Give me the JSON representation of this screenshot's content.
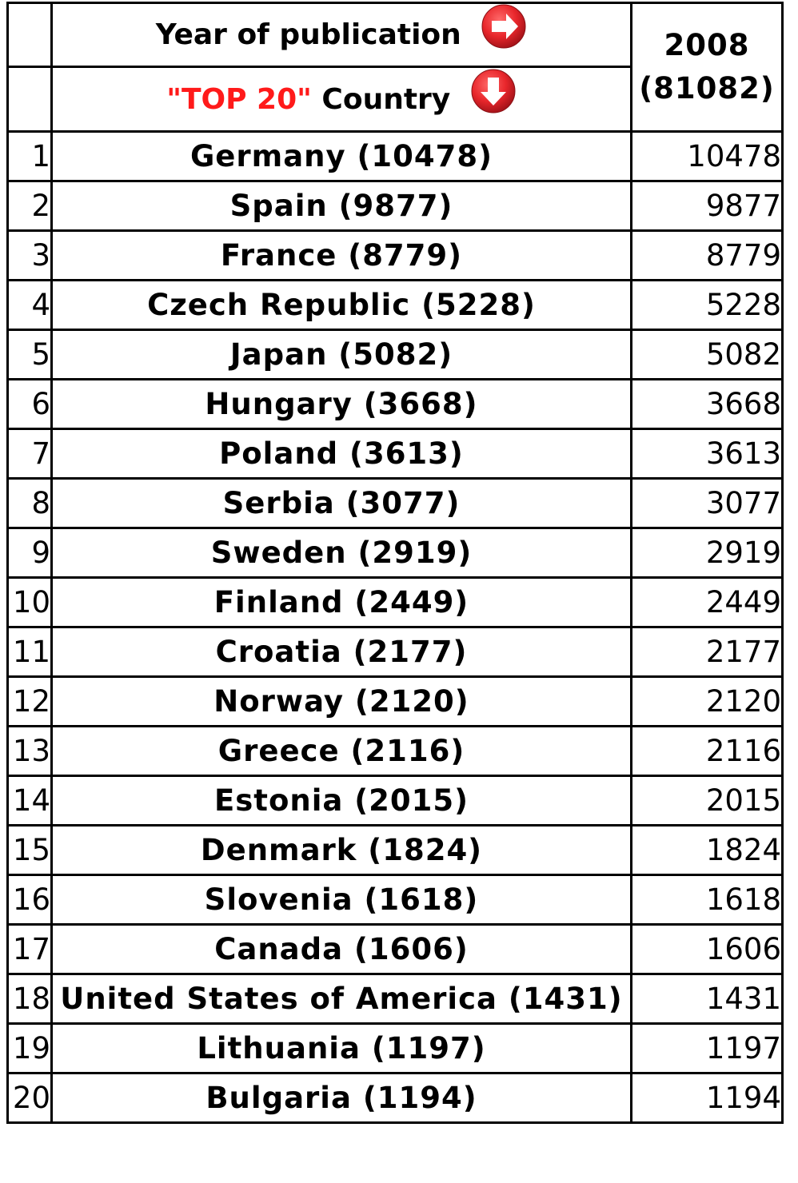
{
  "header": {
    "year_label": "Year of publication",
    "top_label": "\"TOP 20\"",
    "country_label": "Country",
    "year": "2008",
    "year_total": "(81082)",
    "right_arrow_icon": "circle-arrow-right-icon",
    "down_arrow_icon": "circle-arrow-down-icon",
    "accent_color": "#e8262b"
  },
  "rows": [
    {
      "rank": "1",
      "country": "Germany (10478)",
      "value": "10478"
    },
    {
      "rank": "2",
      "country": "Spain (9877)",
      "value": "9877"
    },
    {
      "rank": "3",
      "country": "France (8779)",
      "value": "8779"
    },
    {
      "rank": "4",
      "country": "Czech Republic (5228)",
      "value": "5228"
    },
    {
      "rank": "5",
      "country": "Japan (5082)",
      "value": "5082"
    },
    {
      "rank": "6",
      "country": "Hungary (3668)",
      "value": "3668"
    },
    {
      "rank": "7",
      "country": "Poland (3613)",
      "value": "3613"
    },
    {
      "rank": "8",
      "country": "Serbia (3077)",
      "value": "3077"
    },
    {
      "rank": "9",
      "country": "Sweden (2919)",
      "value": "2919"
    },
    {
      "rank": "10",
      "country": "Finland (2449)",
      "value": "2449"
    },
    {
      "rank": "11",
      "country": "Croatia (2177)",
      "value": "2177"
    },
    {
      "rank": "12",
      "country": "Norway (2120)",
      "value": "2120"
    },
    {
      "rank": "13",
      "country": "Greece (2116)",
      "value": "2116"
    },
    {
      "rank": "14",
      "country": "Estonia (2015)",
      "value": "2015"
    },
    {
      "rank": "15",
      "country": "Denmark (1824)",
      "value": "1824"
    },
    {
      "rank": "16",
      "country": "Slovenia (1618)",
      "value": "1618"
    },
    {
      "rank": "17",
      "country": "Canada (1606)",
      "value": "1606"
    },
    {
      "rank": "18",
      "country": "United States of America (1431)",
      "value": "1431"
    },
    {
      "rank": "19",
      "country": "Lithuania (1197)",
      "value": "1197"
    },
    {
      "rank": "20",
      "country": "Bulgaria (1194)",
      "value": "1194"
    }
  ]
}
